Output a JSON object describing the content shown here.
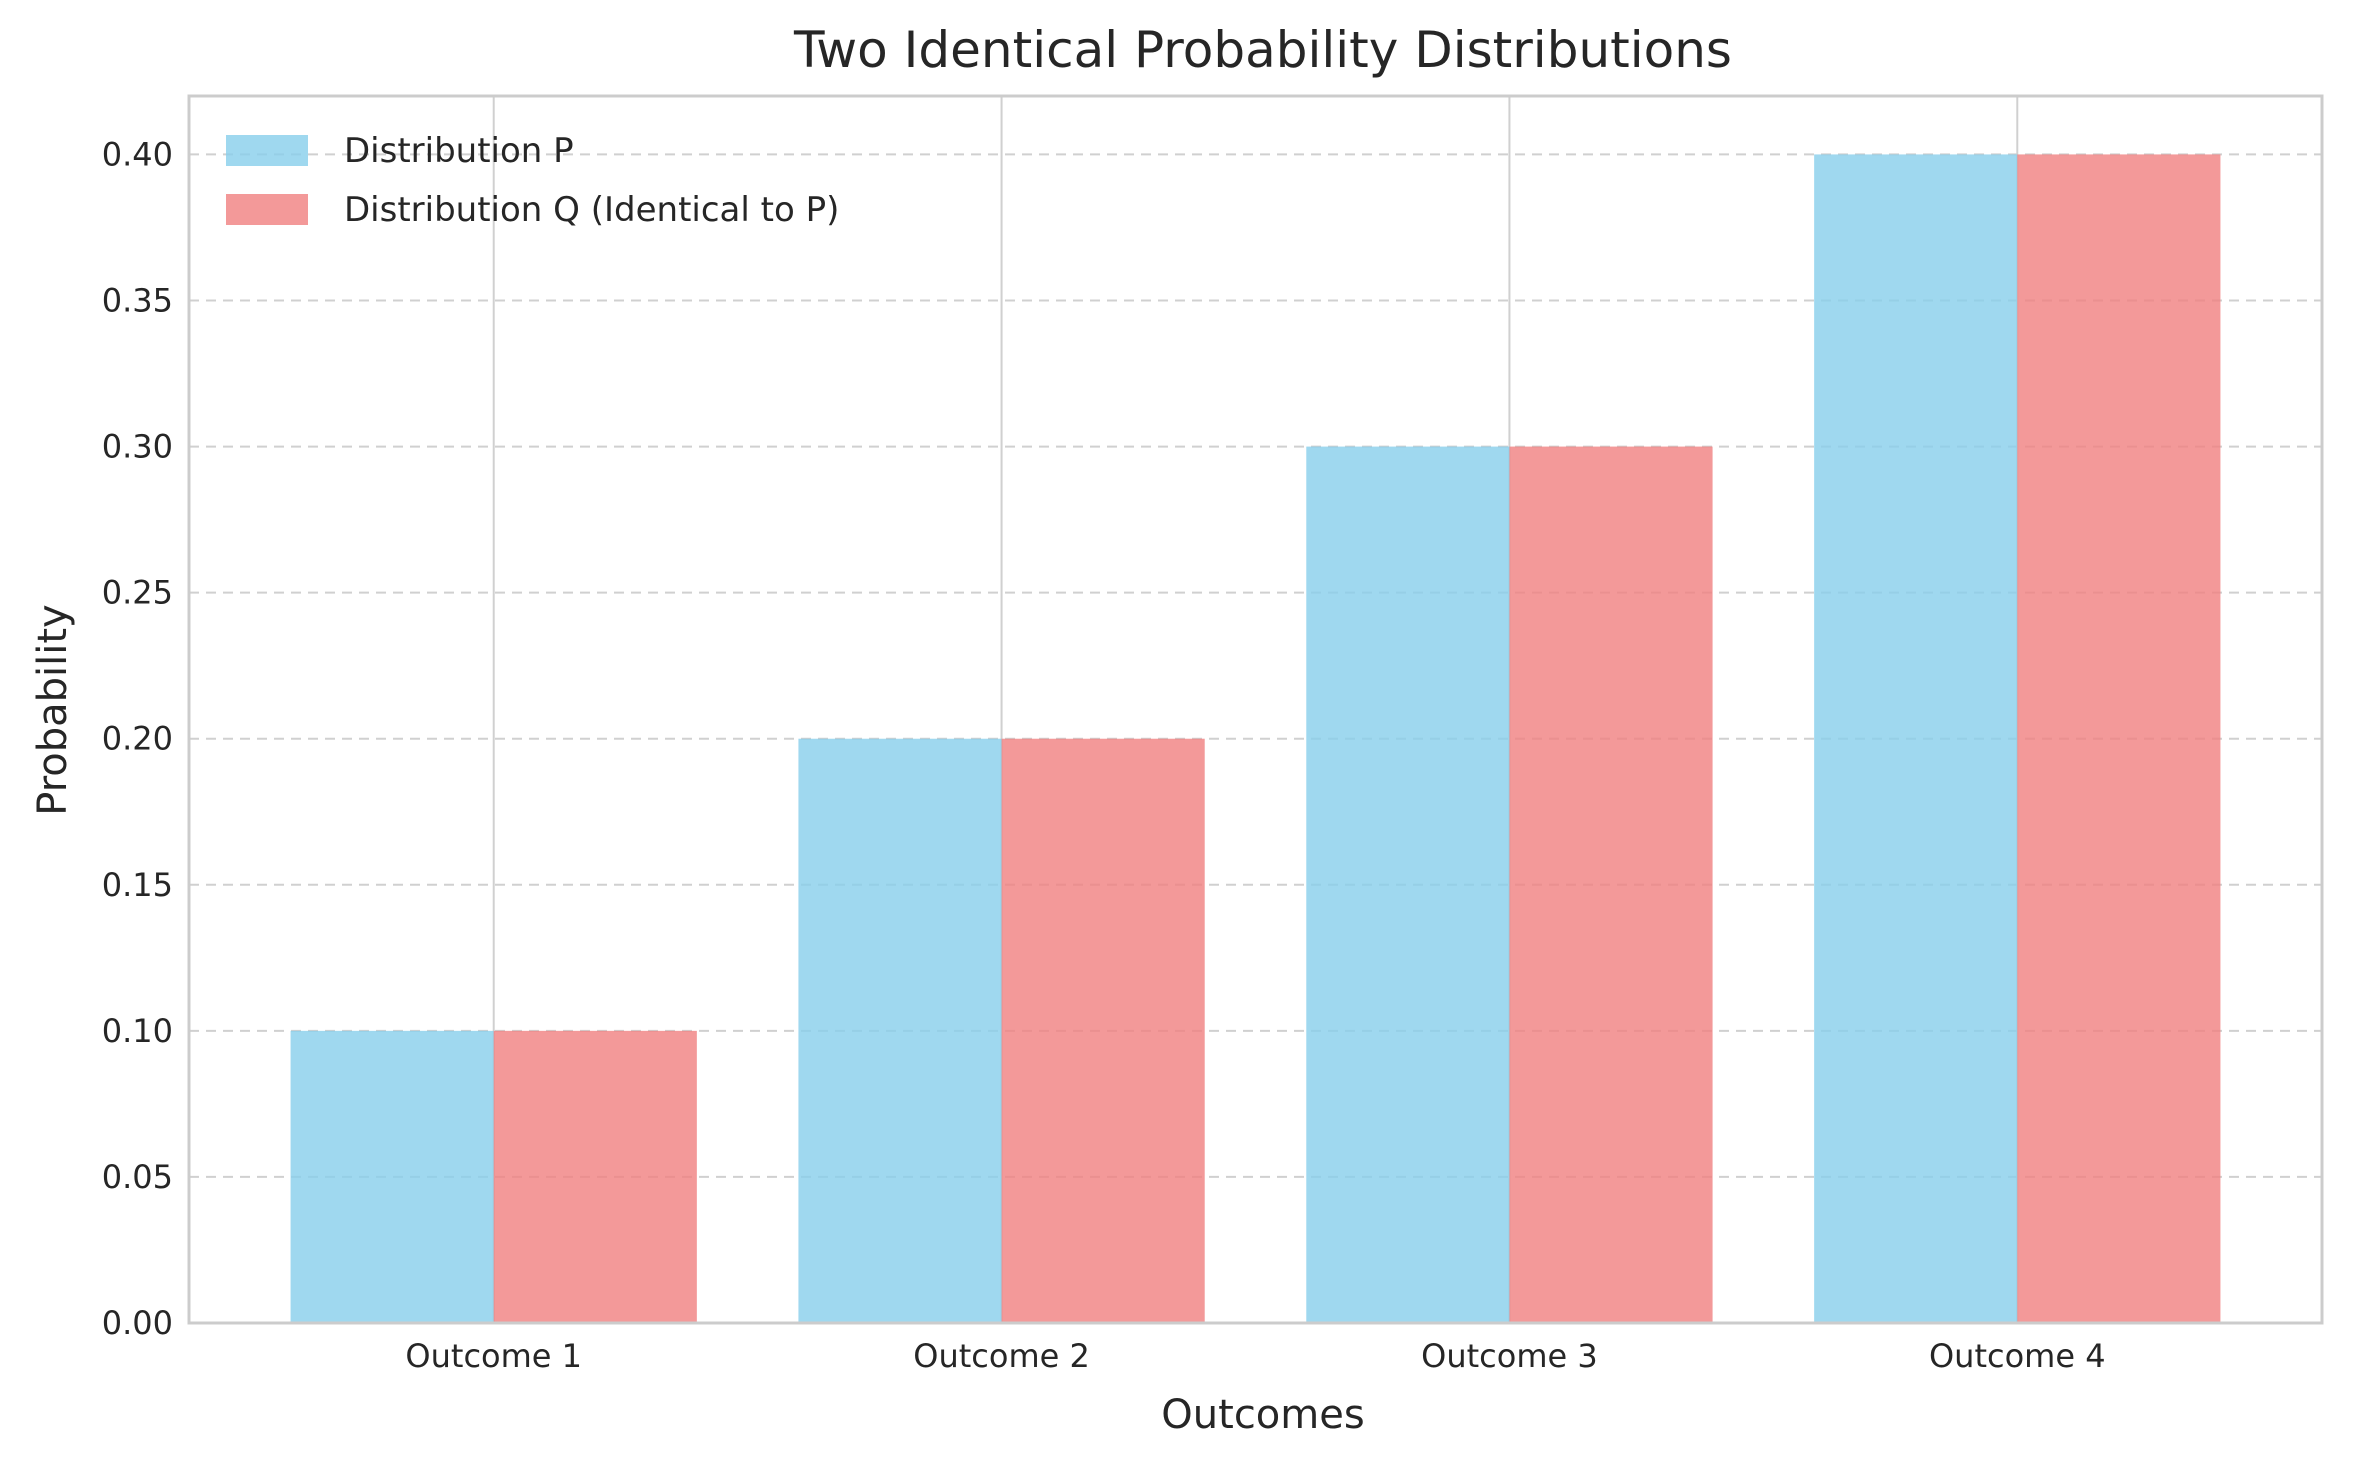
{
  "chart_data": {
    "type": "bar",
    "title": "Two Identical Probability Distributions",
    "xlabel": "Outcomes",
    "ylabel": "Probability",
    "categories": [
      "Outcome 1",
      "Outcome 2",
      "Outcome 3",
      "Outcome 4"
    ],
    "series": [
      {
        "name": "Distribution P",
        "values": [
          0.1,
          0.2,
          0.3,
          0.4
        ],
        "color": "#87ceeb"
      },
      {
        "name": "Distribution Q (Identical to P)",
        "values": [
          0.1,
          0.2,
          0.3,
          0.4
        ],
        "color": "#f08080"
      }
    ],
    "ylim": [
      0,
      0.42
    ],
    "yticks": [
      "0.00",
      "0.05",
      "0.10",
      "0.15",
      "0.20",
      "0.25",
      "0.30",
      "0.35",
      "0.40"
    ],
    "grid": "y-dashed",
    "legend": "top-left"
  }
}
